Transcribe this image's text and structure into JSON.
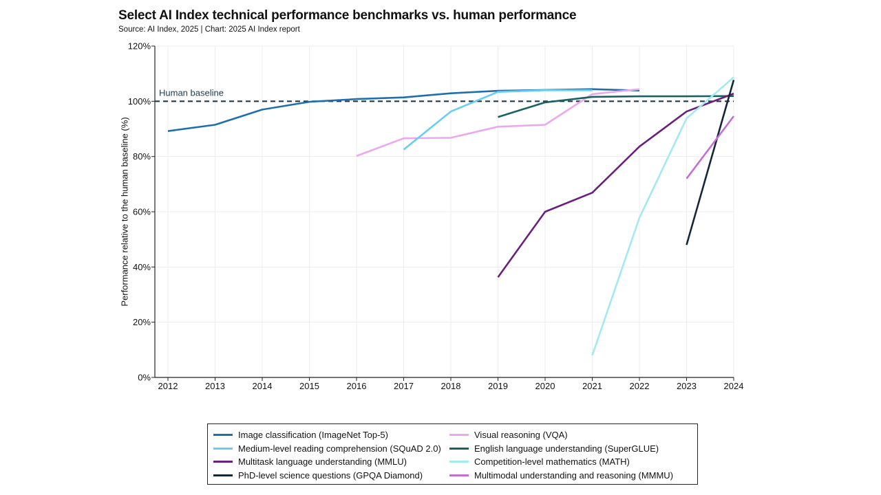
{
  "title": "Select AI Index technical performance benchmarks vs. human performance",
  "subtitle": "Source: AI Index, 2025 | Chart: 2025 AI Index report",
  "chart_data": {
    "type": "line",
    "title": "Select AI Index technical performance benchmarks vs. human performance",
    "ylabel": "Performance relative to the human baseline (%)",
    "xlabel": "",
    "x_categories": [
      "2012",
      "2013",
      "2014",
      "2015",
      "2016",
      "2017",
      "2018",
      "2019",
      "2020",
      "2021",
      "2022",
      "2023",
      "2024"
    ],
    "xlim": [
      2012,
      2024
    ],
    "ylim": [
      0,
      120
    ],
    "y_ticks": [
      0,
      20,
      40,
      60,
      80,
      100,
      120
    ],
    "y_tick_labels": [
      "0%",
      "20%",
      "40%",
      "60%",
      "80%",
      "100%",
      "120%"
    ],
    "grid": true,
    "baseline": {
      "value": 100,
      "label": "Human baseline",
      "color": "#1f3a4d"
    },
    "legend_position": "bottom",
    "series": [
      {
        "name": "Image classification (ImageNet Top-5)",
        "color": "#1f6fad",
        "x": [
          2012,
          2013,
          2014,
          2015,
          2016,
          2017,
          2018,
          2019,
          2020,
          2021,
          2022
        ],
        "y": [
          89.2,
          91.5,
          97.0,
          99.8,
          100.8,
          101.4,
          102.9,
          103.8,
          104.1,
          104.4,
          103.9
        ]
      },
      {
        "name": "Visual reasoning (VQA)",
        "color": "#eba9ec",
        "x": [
          2016,
          2017,
          2018,
          2019,
          2020,
          2021,
          2022
        ],
        "y": [
          80.2,
          86.6,
          86.8,
          90.8,
          91.5,
          102.6,
          104.4
        ]
      },
      {
        "name": "Medium-level reading comprehension (SQuAD 2.0)",
        "color": "#68cdf2",
        "x": [
          2017,
          2018,
          2019,
          2020,
          2021
        ],
        "y": [
          82.5,
          96.3,
          103.4,
          104.0,
          104.0
        ]
      },
      {
        "name": "English language understanding (SuperGLUE)",
        "color": "#1a6163",
        "x": [
          2019,
          2020,
          2021,
          2022,
          2023,
          2024
        ],
        "y": [
          94.3,
          99.6,
          101.6,
          101.8,
          101.8,
          101.9
        ]
      },
      {
        "name": "Multitask language understanding (MMLU)",
        "color": "#6a1f7e",
        "x": [
          2019,
          2020,
          2021,
          2022,
          2023,
          2024
        ],
        "y": [
          36.3,
          60.0,
          66.9,
          83.6,
          96.3,
          102.8
        ]
      },
      {
        "name": "Competition-level mathematics (MATH)",
        "color": "#a3e9f0",
        "x": [
          2021,
          2022,
          2023,
          2024
        ],
        "y": [
          8.0,
          57.8,
          93.8,
          108.7
        ]
      },
      {
        "name": "PhD-level science questions (GPQA Diamond)",
        "color": "#13263a",
        "x": [
          2023,
          2024
        ],
        "y": [
          48.0,
          107.7
        ]
      },
      {
        "name": "Multimodal understanding and reasoning (MMMU)",
        "color": "#c46ed2",
        "x": [
          2023,
          2024
        ],
        "y": [
          72.0,
          94.6
        ]
      }
    ]
  }
}
